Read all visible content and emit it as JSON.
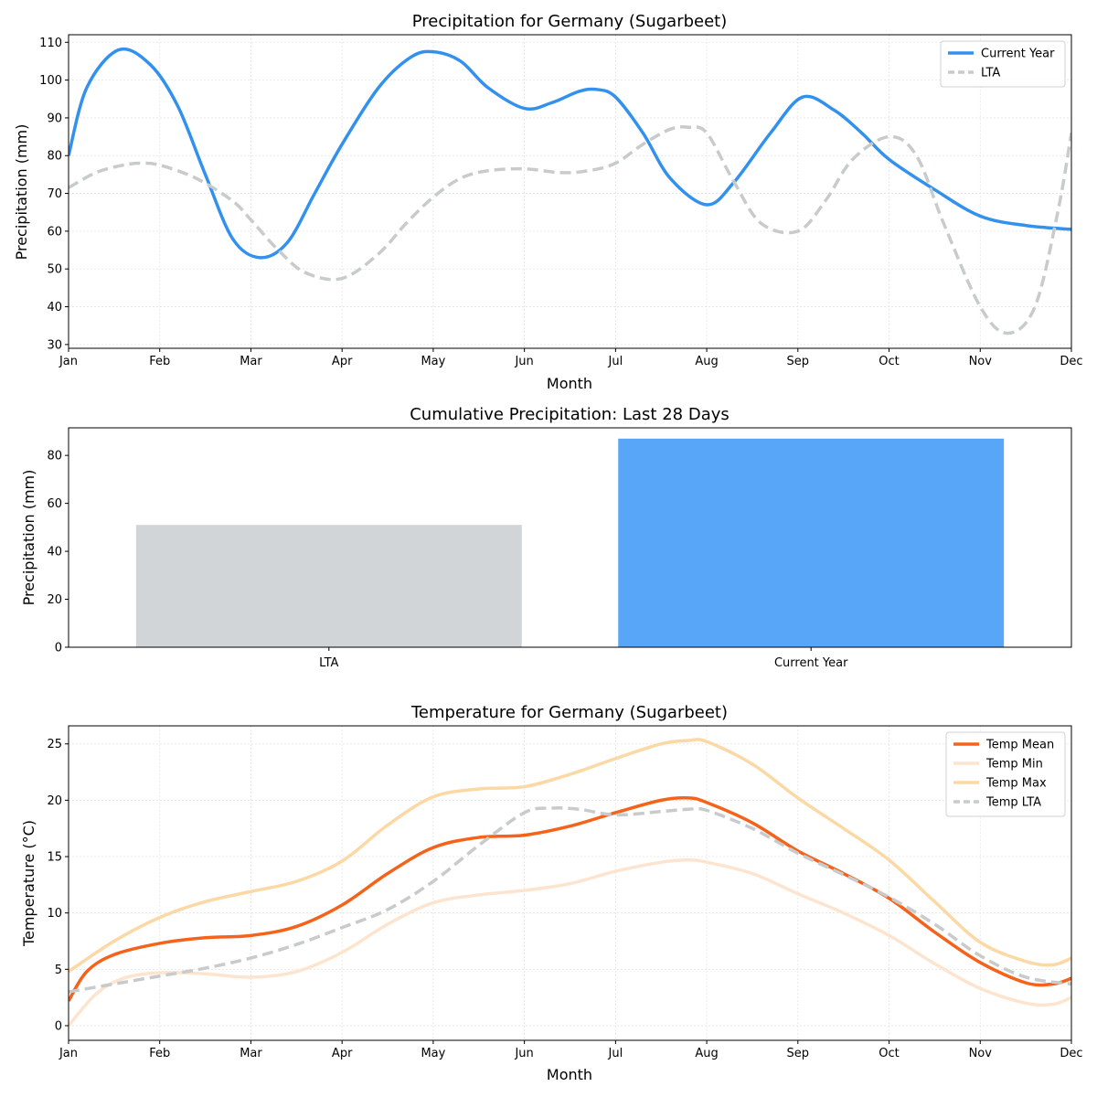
{
  "months": [
    "Jan",
    "Feb",
    "Mar",
    "Apr",
    "May",
    "Jun",
    "Jul",
    "Aug",
    "Sep",
    "Oct",
    "Nov",
    "Dec"
  ],
  "chart_data": [
    {
      "type": "line",
      "title": "Precipitation for Germany (Sugarbeet)",
      "xlabel": "Month",
      "ylabel": "Precipitation (mm)",
      "ylim": [
        29,
        112
      ],
      "yticks": [
        30,
        40,
        50,
        60,
        70,
        80,
        90,
        100,
        110
      ],
      "grid": true,
      "legend_position": "top-right",
      "x_unit": "month (Jan = 1 … Dec = 12)",
      "series": [
        {
          "name": "Current Year",
          "color": "#3391ee",
          "style": "solid",
          "x": [
            1.0,
            1.2,
            1.55,
            1.9,
            2.2,
            2.5,
            2.8,
            3.1,
            3.4,
            3.7,
            4.0,
            4.4,
            4.75,
            5.0,
            5.3,
            5.6,
            6.0,
            6.3,
            6.6,
            6.8,
            7.0,
            7.3,
            7.6,
            8.0,
            8.3,
            8.7,
            9.05,
            9.4,
            9.7,
            10.0,
            10.5,
            11.0,
            11.5,
            12.0
          ],
          "values": [
            80,
            98,
            108,
            104,
            93,
            75,
            58,
            53,
            57,
            70,
            83,
            98,
            106,
            107.5,
            105,
            98,
            92.5,
            94,
            97,
            97.5,
            95.5,
            86,
            74,
            67,
            73,
            86,
            95.5,
            92,
            86,
            79,
            71,
            64,
            61.5,
            60.5
          ]
        },
        {
          "name": "LTA",
          "color": "#c8cbcc",
          "style": "dashed",
          "x": [
            1.0,
            1.3,
            1.6,
            1.8,
            2.0,
            2.4,
            2.8,
            3.0,
            3.3,
            3.6,
            4.0,
            4.4,
            4.7,
            5.0,
            5.3,
            5.6,
            6.0,
            6.4,
            6.7,
            7.0,
            7.3,
            7.6,
            7.8,
            8.0,
            8.3,
            8.6,
            9.0,
            9.3,
            9.6,
            10.0,
            10.3,
            10.6,
            11.0,
            11.3,
            11.6,
            11.85,
            12.0
          ],
          "values": [
            71.5,
            75.5,
            77.5,
            78,
            77.5,
            74,
            68,
            63,
            55,
            49,
            47.5,
            54,
            62,
            69,
            74,
            76,
            76.5,
            75.5,
            76,
            78,
            83,
            87,
            87.5,
            86,
            73,
            62,
            60,
            68,
            79,
            85,
            80,
            62,
            40,
            33,
            40,
            65,
            86
          ]
        }
      ]
    },
    {
      "type": "bar",
      "title": "Cumulative Precipitation: Last 28 Days",
      "xlabel": "",
      "ylabel": "Precipitation (mm)",
      "ylim": [
        0,
        91.5
      ],
      "yticks": [
        0,
        20,
        40,
        60,
        80
      ],
      "categories": [
        "LTA",
        "Current Year"
      ],
      "values": [
        51,
        87
      ],
      "colors": [
        "#d1d5d8",
        "#58a6f8"
      ]
    },
    {
      "type": "line",
      "title": "Temperature for Germany (Sugarbeet)",
      "xlabel": "Month",
      "ylabel": "Temperature (°C)",
      "ylim": [
        -1.3,
        26.6
      ],
      "yticks": [
        0,
        5,
        10,
        15,
        20,
        25
      ],
      "grid": true,
      "legend_position": "top-right",
      "x_unit": "month (Jan = 1 … Dec = 12)",
      "series": [
        {
          "name": "Temp Mean",
          "color": "#f5621a",
          "style": "solid",
          "x": [
            1.0,
            1.2,
            1.5,
            2.0,
            2.5,
            3.0,
            3.5,
            4.0,
            4.5,
            5.0,
            5.5,
            6.0,
            6.5,
            7.0,
            7.5,
            7.8,
            8.0,
            8.5,
            9.0,
            9.5,
            10.0,
            10.5,
            11.0,
            11.5,
            11.8,
            12.0
          ],
          "values": [
            2.2,
            4.8,
            6.3,
            7.3,
            7.8,
            8.0,
            8.8,
            10.7,
            13.5,
            15.8,
            16.7,
            16.9,
            17.7,
            18.9,
            20.0,
            20.2,
            19.8,
            18.0,
            15.5,
            13.5,
            11.3,
            8.3,
            5.6,
            3.8,
            3.7,
            4.2
          ]
        },
        {
          "name": "Temp Min",
          "color": "#fde4cf",
          "style": "solid",
          "x": [
            1.0,
            1.3,
            1.6,
            2.0,
            2.5,
            3.0,
            3.5,
            4.0,
            4.5,
            5.0,
            5.5,
            6.0,
            6.5,
            7.0,
            7.5,
            7.8,
            8.0,
            8.5,
            9.0,
            9.5,
            10.0,
            10.5,
            11.0,
            11.5,
            11.8,
            12.0
          ],
          "values": [
            0,
            2.8,
            4.2,
            4.7,
            4.6,
            4.3,
            4.8,
            6.5,
            9.0,
            10.9,
            11.6,
            12.0,
            12.6,
            13.7,
            14.5,
            14.7,
            14.5,
            13.5,
            11.7,
            10.0,
            8.0,
            5.5,
            3.3,
            2.0,
            1.9,
            2.5
          ]
        },
        {
          "name": "Temp Max",
          "color": "#fbd8a4",
          "style": "solid",
          "x": [
            1.0,
            1.5,
            2.0,
            2.5,
            3.0,
            3.5,
            4.0,
            4.5,
            5.0,
            5.5,
            6.0,
            6.5,
            7.0,
            7.5,
            7.8,
            8.0,
            8.5,
            9.0,
            9.5,
            10.0,
            10.5,
            11.0,
            11.5,
            11.8,
            12.0
          ],
          "values": [
            4.8,
            7.5,
            9.6,
            11.0,
            11.9,
            12.8,
            14.6,
            17.8,
            20.3,
            21.0,
            21.2,
            22.3,
            23.7,
            25.0,
            25.3,
            25.2,
            23.2,
            20.2,
            17.5,
            14.7,
            11.0,
            7.4,
            5.7,
            5.4,
            6.0
          ]
        },
        {
          "name": "Temp LTA",
          "color": "#c8cbcc",
          "style": "dashed",
          "x": [
            1.0,
            1.5,
            2.0,
            2.5,
            3.0,
            3.5,
            4.0,
            4.5,
            5.0,
            5.5,
            6.0,
            6.3,
            6.6,
            7.0,
            7.5,
            7.8,
            8.0,
            8.5,
            9.0,
            9.5,
            10.0,
            10.5,
            11.0,
            11.5,
            12.0
          ],
          "values": [
            3.0,
            3.7,
            4.4,
            5.1,
            6.0,
            7.2,
            8.7,
            10.3,
            12.8,
            16.0,
            18.9,
            19.3,
            19.2,
            18.7,
            19.0,
            19.2,
            19.1,
            17.5,
            15.3,
            13.4,
            11.4,
            9.0,
            6.2,
            4.3,
            3.7
          ]
        }
      ]
    }
  ]
}
